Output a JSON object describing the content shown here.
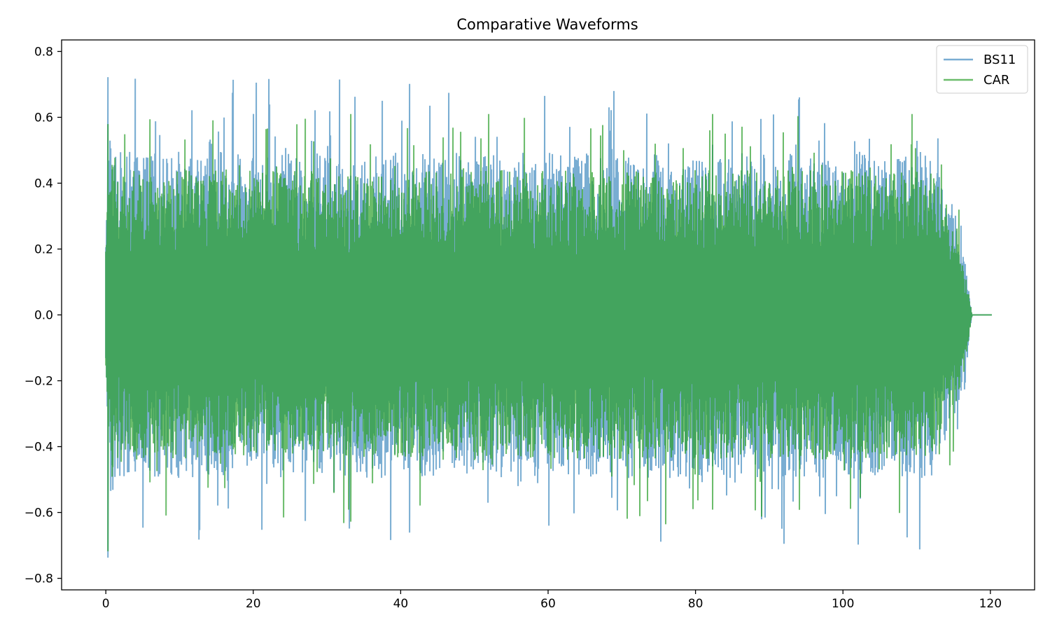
{
  "chart_data": {
    "type": "line",
    "title": "Comparative Waveforms",
    "xlabel": "",
    "ylabel": "",
    "xlim": [
      -6,
      126
    ],
    "ylim": [
      -0.835,
      0.835
    ],
    "xticks": [
      0,
      20,
      40,
      60,
      80,
      100,
      120
    ],
    "xtick_labels": [
      "0",
      "20",
      "40",
      "60",
      "80",
      "100",
      "120"
    ],
    "yticks": [
      -0.8,
      -0.6,
      -0.4,
      -0.2,
      0.0,
      0.2,
      0.4,
      0.6,
      0.8
    ],
    "ytick_labels": [
      "−0.8",
      "−0.6",
      "−0.4",
      "−0.2",
      "0.0",
      "0.2",
      "0.4",
      "0.6",
      "0.8"
    ],
    "grid": false,
    "legend_position": "top-right",
    "duration": 120.2,
    "signal_end": 117.5,
    "series": [
      {
        "name": "BS11",
        "color": "#1f77b4",
        "alpha": 0.6,
        "typical_amplitude": 0.45,
        "max_peak": 0.76,
        "min_peak": -0.76
      },
      {
        "name": "CAR",
        "color": "#2ca02c",
        "alpha": 0.7,
        "typical_amplitude": 0.4,
        "max_peak": 0.61,
        "min_peak": -0.74
      }
    ]
  }
}
